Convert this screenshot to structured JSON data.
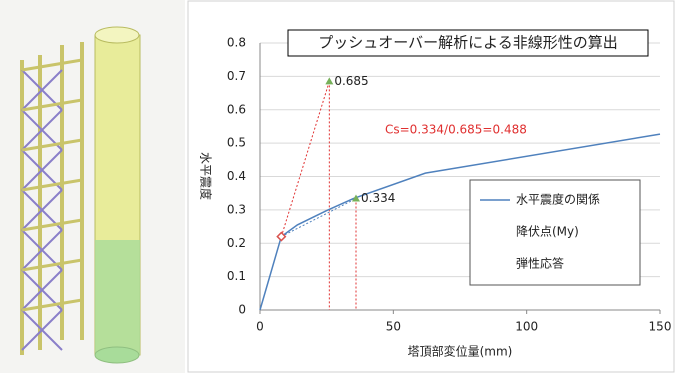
{
  "chart_data": {
    "type": "line",
    "title": "プッシュオーバー解析による非線形性の算出",
    "x_label": "塔頂部変位量(mm)",
    "y_label": "水平震度",
    "annotation": "Cs=0.334/0.685=0.488",
    "xlim": [
      0,
      150
    ],
    "xticks": [
      0,
      50,
      100,
      150
    ],
    "ylim": [
      0,
      0.8
    ],
    "yticks": [
      0,
      0.1,
      0.2,
      0.3,
      0.4,
      0.5,
      0.6,
      0.7,
      0.8
    ],
    "grid": true,
    "series": [
      {
        "name": "水平震度の関係",
        "color": "#4f81bd",
        "marker": "none",
        "x": [
          0,
          8,
          14,
          25,
          35,
          62,
          150
        ],
        "values": [
          0,
          0.22,
          0.255,
          0.298,
          0.334,
          0.41,
          0.527
        ]
      },
      {
        "name": "降伏点(My)",
        "color": "#d9534f",
        "marker": "diamond",
        "x": [
          8
        ],
        "values": [
          0.22
        ]
      },
      {
        "name": "弾性応答",
        "color": "#77b05a",
        "marker": "triangle",
        "x": [
          26,
          36
        ],
        "values": [
          0.685,
          0.334
        ]
      }
    ]
  }
}
